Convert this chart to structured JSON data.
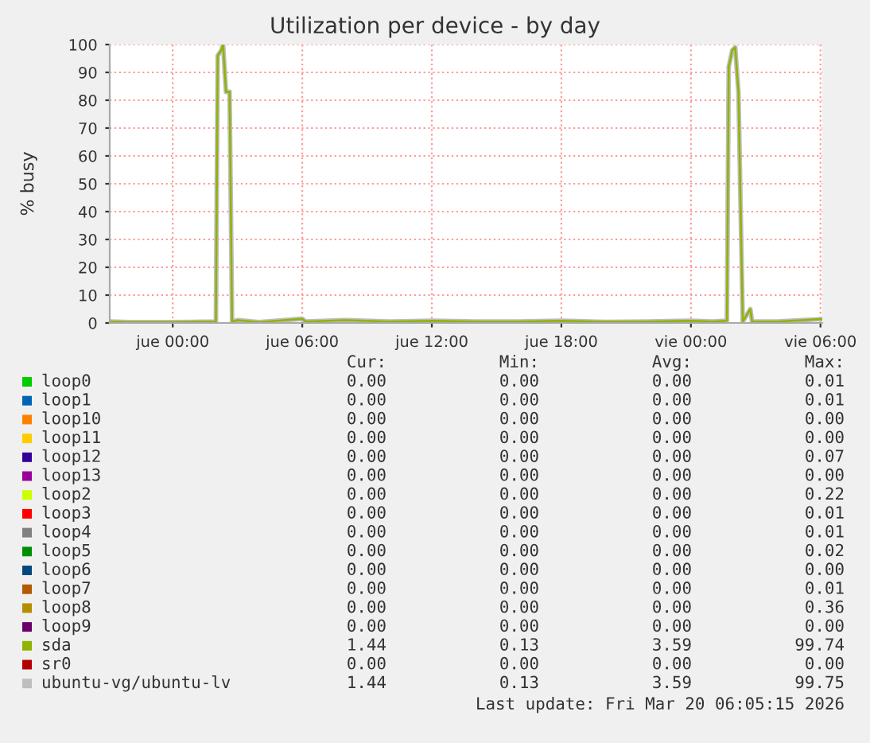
{
  "chart_data": [
    {
      "type": "line",
      "title": "Utilization per device - by day",
      "ylabel": "% busy",
      "xlim": [
        "2026-03-18T21:05",
        "2026-03-20T06:05"
      ],
      "xticks": [
        {
          "value": "2026-03-19T00:00",
          "label": "jue 00:00"
        },
        {
          "value": "2026-03-19T06:00",
          "label": "jue 06:00"
        },
        {
          "value": "2026-03-19T12:00",
          "label": "jue 12:00"
        },
        {
          "value": "2026-03-19T18:00",
          "label": "jue 18:00"
        },
        {
          "value": "2026-03-20T00:00",
          "label": "vie 00:00"
        },
        {
          "value": "2026-03-20T06:00",
          "label": "vie 06:00"
        }
      ],
      "ylim": [
        0,
        100
      ],
      "yticks": [
        0,
        10,
        20,
        30,
        40,
        50,
        60,
        70,
        80,
        90,
        100
      ],
      "grid": true,
      "series": [
        {
          "color": "#bebebe",
          "x": [
            "2026-03-18T21:05",
            "2026-03-18T22:00",
            "2026-03-19T00:00",
            "2026-03-19T01:00",
            "2026-03-19T02:00",
            "2026-03-19T02:05",
            "2026-03-19T02:15",
            "2026-03-19T02:20",
            "2026-03-19T02:28",
            "2026-03-19T02:38",
            "2026-03-19T02:45",
            "2026-03-19T03:00",
            "2026-03-19T04:00",
            "2026-03-19T06:00",
            "2026-03-19T06:10",
            "2026-03-19T08:00",
            "2026-03-19T10:00",
            "2026-03-19T12:00",
            "2026-03-19T14:00",
            "2026-03-19T16:00",
            "2026-03-19T18:00",
            "2026-03-19T20:00",
            "2026-03-19T22:00",
            "2026-03-20T00:00",
            "2026-03-20T01:00",
            "2026-03-20T01:40",
            "2026-03-20T01:45",
            "2026-03-20T01:55",
            "2026-03-20T02:03",
            "2026-03-20T02:12",
            "2026-03-20T02:24",
            "2026-03-20T02:45",
            "2026-03-20T02:50",
            "2026-03-20T04:00",
            "2026-03-20T06:05"
          ],
          "values": [
            0.5,
            0.3,
            0.3,
            0.4,
            0.5,
            96,
            98,
            100,
            83,
            83,
            0.5,
            1,
            0.3,
            1.5,
            0.5,
            1,
            0.5,
            0.8,
            0.5,
            0.5,
            0.8,
            0.4,
            0.5,
            0.8,
            0.5,
            0.8,
            92,
            98,
            99,
            83,
            0.5,
            5,
            0.5,
            0.5,
            1.4
          ]
        },
        {
          "color": "#8fb300",
          "x": [
            "2026-03-18T21:05",
            "2026-03-18T22:00",
            "2026-03-19T00:00",
            "2026-03-19T01:00",
            "2026-03-19T02:00",
            "2026-03-19T02:05",
            "2026-03-19T02:15",
            "2026-03-19T02:20",
            "2026-03-19T02:28",
            "2026-03-19T02:38",
            "2026-03-19T02:45",
            "2026-03-19T03:00",
            "2026-03-19T04:00",
            "2026-03-19T06:00",
            "2026-03-19T06:10",
            "2026-03-19T08:00",
            "2026-03-19T10:00",
            "2026-03-19T12:00",
            "2026-03-19T14:00",
            "2026-03-19T16:00",
            "2026-03-19T18:00",
            "2026-03-19T20:00",
            "2026-03-19T22:00",
            "2026-03-20T00:00",
            "2026-03-20T01:00",
            "2026-03-20T01:40",
            "2026-03-20T01:45",
            "2026-03-20T01:55",
            "2026-03-20T02:03",
            "2026-03-20T02:12",
            "2026-03-20T02:24",
            "2026-03-20T02:45",
            "2026-03-20T02:50",
            "2026-03-20T04:00",
            "2026-03-20T06:05"
          ],
          "values": [
            0.5,
            0.3,
            0.3,
            0.4,
            0.5,
            96,
            98,
            100,
            83,
            83,
            0.5,
            1,
            0.3,
            1.5,
            0.5,
            1,
            0.5,
            0.8,
            0.5,
            0.5,
            0.8,
            0.4,
            0.5,
            0.8,
            0.5,
            0.8,
            92,
            98,
            99,
            83,
            0.5,
            5,
            0.5,
            0.5,
            1.4
          ]
        }
      ]
    },
    {
      "type": "other",
      "categories": [
        "loop0",
        "loop1",
        "loop10",
        "loop11",
        "loop12",
        "loop13",
        "loop2",
        "loop3",
        "loop4",
        "loop5",
        "loop6",
        "loop7",
        "loop8",
        "loop9",
        "sda",
        "sr0",
        "ubuntu-vg/ubuntu-lv"
      ],
      "colors": [
        "#00cc00",
        "#0066b3",
        "#ff8000",
        "#ffcc00",
        "#330099",
        "#990099",
        "#ccff00",
        "#ff0000",
        "#808080",
        "#008f00",
        "#00487d",
        "#b35a00",
        "#b38f00",
        "#6b006b",
        "#8fb300",
        "#b30000",
        "#bebebe"
      ],
      "series": [
        {
          "name": "Cur:",
          "values": [
            0,
            0,
            0,
            0,
            0,
            0,
            0,
            0,
            0,
            0,
            0,
            0,
            0,
            0,
            1.44,
            0,
            1.44
          ],
          "value_labels": [
            "0.00",
            "0.00",
            "0.00",
            "0.00",
            "0.00",
            "0.00",
            "0.00",
            "0.00",
            "0.00",
            "0.00",
            "0.00",
            "0.00",
            "0.00",
            "0.00",
            "1.44",
            "0.00",
            "1.44"
          ]
        },
        {
          "name": "Min:",
          "values": [
            0,
            0,
            0,
            0,
            0,
            0,
            0,
            0,
            0,
            0,
            0,
            0,
            0,
            0,
            0.13,
            0,
            0.13
          ],
          "value_labels": [
            "0.00",
            "0.00",
            "0.00",
            "0.00",
            "0.00",
            "0.00",
            "0.00",
            "0.00",
            "0.00",
            "0.00",
            "0.00",
            "0.00",
            "0.00",
            "0.00",
            "0.13",
            "0.00",
            "0.13"
          ]
        },
        {
          "name": "Avg:",
          "values": [
            0,
            0,
            0,
            0,
            0,
            0,
            0,
            0,
            0,
            0,
            0,
            0,
            0,
            0,
            3.59,
            0,
            3.59
          ],
          "value_labels": [
            "0.00",
            "0.00",
            "0.00",
            "0.00",
            "0.00",
            "0.00",
            "0.00",
            "0.00",
            "0.00",
            "0.00",
            "0.00",
            "0.00",
            "0.00",
            "0.00",
            "3.59",
            "0.00",
            "3.59"
          ]
        },
        {
          "name": "Max:",
          "values": [
            0.01,
            0.01,
            0,
            0,
            0.07,
            0,
            0.22,
            0.01,
            0.01,
            0.02,
            0,
            0.01,
            0.36,
            0,
            99.74,
            0,
            99.75
          ],
          "value_labels": [
            "0.01",
            "0.01",
            "0.00",
            "0.00",
            "0.07",
            "0.00",
            "0.22",
            "0.01",
            "0.01",
            "0.02",
            "0.00",
            "0.01",
            "0.36",
            "0.00",
            "99.74",
            "0.00",
            "99.75"
          ]
        }
      ],
      "annotations": [
        "Last update: Fri Mar 20 06:05:15 2026"
      ]
    }
  ]
}
